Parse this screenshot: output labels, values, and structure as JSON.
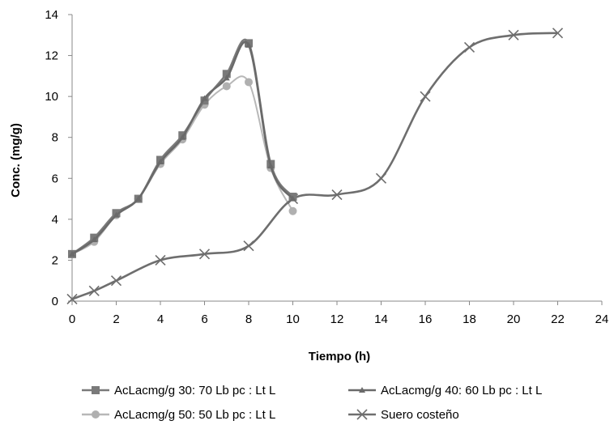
{
  "chart_data": {
    "type": "line",
    "title": "",
    "xlabel": "Tiempo (h)",
    "ylabel": "Conc. (mg/g)",
    "xlim": [
      0,
      24
    ],
    "ylim": [
      0,
      14
    ],
    "xticks": [
      0,
      2,
      4,
      6,
      8,
      10,
      12,
      14,
      16,
      18,
      20,
      22,
      24
    ],
    "yticks": [
      0,
      2,
      4,
      6,
      8,
      10,
      12,
      14
    ],
    "grid": false,
    "legend_position": "bottom",
    "series": [
      {
        "name": "AcLacmg/g 30: 70 Lb pc : Lt L",
        "marker": "square",
        "color": "#7a7a7a",
        "points": [
          [
            0,
            2.3
          ],
          [
            1,
            3.1
          ],
          [
            2,
            4.3
          ],
          [
            3,
            5.0
          ],
          [
            4,
            6.9
          ],
          [
            5,
            8.1
          ],
          [
            6,
            9.8
          ],
          [
            7,
            11.1
          ],
          [
            8,
            12.6
          ],
          [
            9,
            6.7
          ],
          [
            10,
            5.1
          ]
        ]
      },
      {
        "name": "AcLacmg/g 40: 60 Lb pc : Lt L",
        "marker": "triangle",
        "color": "#6a6a6a",
        "points": [
          [
            0,
            2.3
          ],
          [
            1,
            3.0
          ],
          [
            2,
            4.2
          ],
          [
            3,
            5.0
          ],
          [
            4,
            6.8
          ],
          [
            5,
            8.0
          ],
          [
            6,
            9.9
          ],
          [
            7,
            10.9
          ],
          [
            8,
            12.5
          ],
          [
            9,
            6.6
          ],
          [
            10,
            5.0
          ]
        ]
      },
      {
        "name": "AcLacmg/g 50: 50 Lb pc : Lt L",
        "marker": "circle",
        "color": "#b0b0b0",
        "points": [
          [
            0,
            2.3
          ],
          [
            1,
            2.9
          ],
          [
            2,
            4.2
          ],
          [
            3,
            5.0
          ],
          [
            4,
            6.7
          ],
          [
            5,
            7.9
          ],
          [
            6,
            9.6
          ],
          [
            7,
            10.5
          ],
          [
            8,
            10.7
          ],
          [
            9,
            6.5
          ],
          [
            10,
            4.4
          ]
        ]
      },
      {
        "name": "Suero costeño",
        "marker": "x",
        "color": "#6e6e6e",
        "points": [
          [
            0,
            0.1
          ],
          [
            1,
            0.5
          ],
          [
            2,
            1.0
          ],
          [
            4,
            2.0
          ],
          [
            6,
            2.3
          ],
          [
            8,
            2.7
          ],
          [
            10,
            5.0
          ],
          [
            12,
            5.2
          ],
          [
            14,
            6.0
          ],
          [
            16,
            10.0
          ],
          [
            18,
            12.4
          ],
          [
            20,
            13.0
          ],
          [
            22,
            13.1
          ]
        ]
      }
    ]
  }
}
